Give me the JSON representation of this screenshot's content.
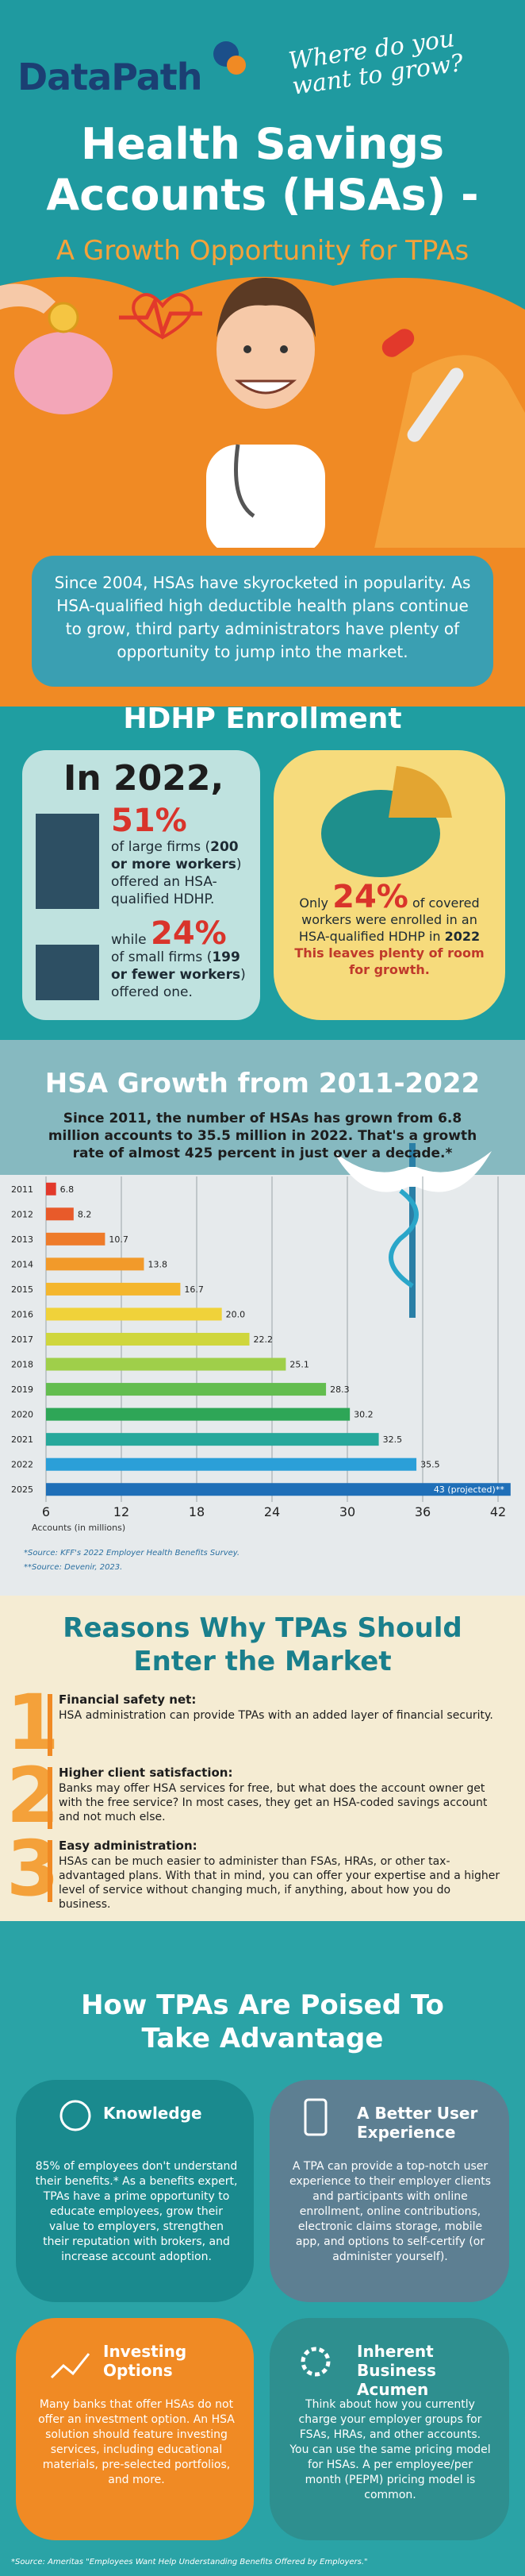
{
  "header": {
    "logo": "DataPath",
    "tagline": "Where do you want to grow?",
    "title_line1": "Health Savings",
    "title_line2": "Accounts (HSAs) -",
    "subtitle": "A Growth Opportunity for TPAs"
  },
  "intro": "Since 2004, HSAs have skyrocketed in popularity. As HSA-qualified high deductible health plans continue to grow, third party administrators have plenty of opportunity to jump into the market.",
  "hdhp": {
    "heading": "HDHP Enrollment",
    "large_firms": {
      "prefix": "In",
      "year": "2022,",
      "percent": "51%",
      "text_start": "of large firms (",
      "text_bold": "200 or more workers",
      "text_end": ") offered an HSA-qualified HDHP."
    },
    "small_firms": {
      "prefix": "while",
      "percent": "24%",
      "text_start": "of small firms (",
      "text_bold": "199 or fewer workers",
      "text_end": ") offered one."
    },
    "covered_workers": {
      "prefix": "Only",
      "percent": "24%",
      "text": "of covered workers were enrolled in an HSA-qualified HDHP in",
      "year": "2022",
      "note": "This leaves plenty of room for growth."
    }
  },
  "chart_data": {
    "type": "bar",
    "orientation": "horizontal",
    "title": "HSA Growth from 2011-2022",
    "subtitle": "Since 2011, the number of HSAs has grown from 6.8 million accounts to 35.5 million in 2022. That's a growth rate of almost 425 percent in just over a decade.*",
    "x_label": "Accounts (in millions)",
    "categories": [
      "2011",
      "2012",
      "2013",
      "2014",
      "2015",
      "2016",
      "2017",
      "2018",
      "2019",
      "2020",
      "2021",
      "2022",
      "2025"
    ],
    "values": [
      6.8,
      8.2,
      10.7,
      13.8,
      16.7,
      20,
      22.2,
      25.1,
      28.3,
      30.2,
      32.5,
      35.5,
      43
    ],
    "value_labels": [
      "6.8",
      "8.2",
      "10.7",
      "13.8",
      "16.7",
      "20.0",
      "22.2",
      "25.1",
      "28.3",
      "30.2",
      "32.5",
      "35.5",
      "43 (projected)**"
    ],
    "colors": [
      "#e2392b",
      "#e85a2a",
      "#ee7b2a",
      "#f29a2a",
      "#f4b62d",
      "#f0d23a",
      "#cfd63d",
      "#9fcf4a",
      "#63bd4f",
      "#2ea657",
      "#27a89b",
      "#2b9fd8",
      "#1f6fb8"
    ],
    "xlim": [
      6,
      42
    ],
    "xticks": [
      6,
      12,
      18,
      24,
      30,
      36,
      42
    ],
    "grid": true,
    "sources": [
      "*Source: KFF's 2022 Employer Health Benefits Survey.",
      "**Source: Devenir, 2023."
    ]
  },
  "reasons": {
    "heading": "Reasons Why TPAs Should Enter the Market",
    "items": [
      {
        "number": "1",
        "title": "Financial safety net:",
        "text": "HSA administration can provide TPAs with an added layer of financial security."
      },
      {
        "number": "2",
        "title": "Higher client satisfaction:",
        "text": "Banks may offer HSA services for free, but what does the account owner get with the free service? In most cases, they get an HSA-coded savings account and not much else."
      },
      {
        "number": "3",
        "title": "Easy administration:",
        "text": "HSAs can be much easier to administer than FSAs, HRAs, or other tax-advantaged plans. With that in mind, you can offer your expertise and a higher level of service without changing much, if anything, about how you do business."
      }
    ]
  },
  "advantages": {
    "heading": "How TPAs Are Poised To Take Advantage",
    "cards": [
      {
        "title": "Knowledge",
        "text": "85% of employees don't understand their benefits.* As a benefits expert, TPAs have a prime opportunity to educate employees, grow their value to employers, strengthen their reputation with brokers, and increase account adoption."
      },
      {
        "title": "A Better User Experience",
        "text": "A TPA can provide a top-notch user experience to their employer clients and participants with online enrollment, online contributions, electronic claims storage, mobile app, and options to self-certify (or administer yourself)."
      },
      {
        "title": "Investing Options",
        "text": "Many banks that offer HSAs do not offer an investment option. An HSA solution should feature investing services, including educational materials, pre-selected portfolios, and more."
      },
      {
        "title": "Inherent Business Acumen",
        "text": "Think about how you currently charge your employer groups for FSAs, HRAs, and other accounts. You can use the same pricing model for HSAs. A per employee/per month (PEPM) pricing model is common."
      }
    ],
    "source": "*Source: Ameritas \"Employees Want Help Understanding Benefits Offered by Employers.\""
  }
}
